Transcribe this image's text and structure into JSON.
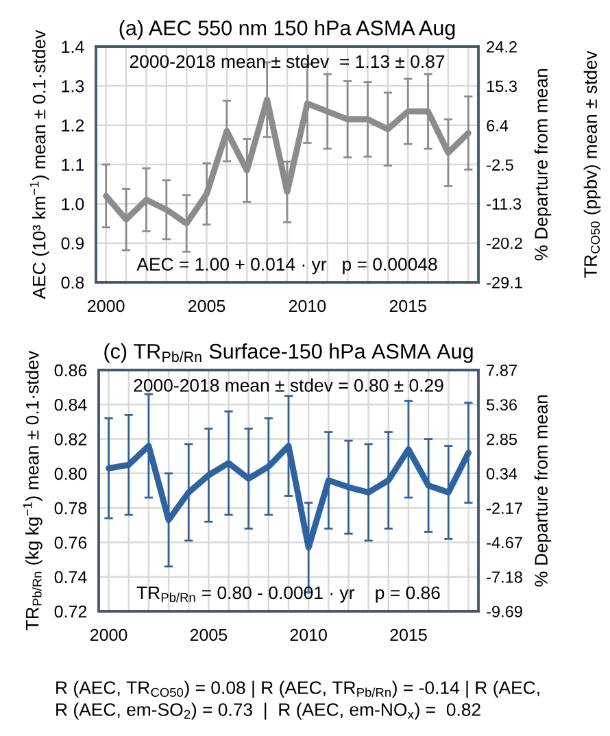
{
  "chart_data": [
    {
      "type": "line",
      "title": "(a) AEC 550 nm 150 hPa ASMA Aug",
      "ylabel": "AEC (10³ km$^{−1}$) mean ± 0.1·stdev",
      "y2label": "% Departure from mean",
      "x": [
        2000,
        2001,
        2002,
        2003,
        2004,
        2005,
        2006,
        2007,
        2008,
        2009,
        2010,
        2011,
        2012,
        2013,
        2014,
        2015,
        2016,
        2017,
        2018
      ],
      "series": [
        {
          "color": "#8c8c8c",
          "values": [
            1.02,
            0.96,
            1.01,
            0.985,
            0.95,
            1.025,
            1.185,
            1.085,
            1.265,
            1.03,
            1.255,
            1.235,
            1.215,
            1.215,
            1.19,
            1.235,
            1.235,
            1.13,
            1.18
          ],
          "errors": [
            0.08,
            0.078,
            0.08,
            0.075,
            0.072,
            0.078,
            0.077,
            0.08,
            0.095,
            0.077,
            0.1,
            0.095,
            0.097,
            0.095,
            0.093,
            0.083,
            0.095,
            0.085,
            0.093
          ]
        }
      ],
      "xlim": [
        1999.5,
        2018.5
      ],
      "xticks": [
        2000,
        {
          "value": 2001,
          "label": null
        },
        {
          "value": 2002,
          "label": null
        },
        {
          "value": 2003,
          "label": null
        },
        {
          "value": 2004,
          "label": null
        },
        2005,
        {
          "value": 2006,
          "label": null
        },
        {
          "value": 2007,
          "label": null
        },
        {
          "value": 2008,
          "label": null
        },
        {
          "value": 2009,
          "label": null
        },
        2010,
        {
          "value": 2011,
          "label": null
        },
        {
          "value": 2012,
          "label": null
        },
        {
          "value": 2013,
          "label": null
        },
        {
          "value": 2014,
          "label": null
        },
        2015,
        {
          "value": 2016,
          "label": null
        },
        {
          "value": 2017,
          "label": null
        },
        {
          "value": 2018,
          "label": null
        }
      ],
      "ylim": [
        0.8,
        1.4
      ],
      "yticks": [
        0.8,
        0.9,
        {
          "value": 1.0,
          "label": "1.0"
        },
        1.1,
        1.2,
        1.3,
        1.4
      ],
      "y2lim": [
        -29.1,
        24.2
      ],
      "y2ticks": [
        -29.1,
        -20.2,
        -11.3,
        -2.5,
        6.4,
        15.3,
        24.2
      ],
      "grid": true,
      "annotations": [
        "2000-2018 mean ± stdev  = 1.13 ± 0.87",
        "AEC = 1.00 + 0.014 · yr   p = 0.00048",
        "TR$_{CO50}$ (ppbv) mean ± stdev"
      ]
    },
    {
      "type": "line",
      "title": "(c) TR$_{Pb/Rn}$ Surface-150 hPa ASMA Aug",
      "ylabel": "TR$_{Pb/Rn}$ (kg kg$^{−1}$) mean ± 0.1·stdev",
      "y2label": "% Departure from mean",
      "x": [
        2000,
        2001,
        2002,
        2003,
        2004,
        2005,
        2006,
        2007,
        2008,
        2009,
        2010,
        2011,
        2012,
        2013,
        2014,
        2015,
        2016,
        2017,
        2018
      ],
      "series": [
        {
          "color": "#2e62a0",
          "values": [
            0.803,
            0.805,
            0.816,
            0.773,
            0.789,
            0.799,
            0.806,
            0.797,
            0.804,
            0.816,
            0.757,
            0.796,
            0.792,
            0.789,
            0.796,
            0.814,
            0.793,
            0.789,
            0.812
          ],
          "errors": [
            0.029,
            0.029,
            0.03,
            0.027,
            0.028,
            0.027,
            0.03,
            0.029,
            0.028,
            0.029,
            0.026,
            0.028,
            0.027,
            0.028,
            0.028,
            0.028,
            0.027,
            0.027,
            0.029
          ]
        }
      ],
      "xlim": [
        1999.5,
        2018.5
      ],
      "xticks": [
        2000,
        {
          "value": 2001,
          "label": null
        },
        {
          "value": 2002,
          "label": null
        },
        {
          "value": 2003,
          "label": null
        },
        {
          "value": 2004,
          "label": null
        },
        2005,
        {
          "value": 2006,
          "label": null
        },
        {
          "value": 2007,
          "label": null
        },
        {
          "value": 2008,
          "label": null
        },
        {
          "value": 2009,
          "label": null
        },
        2010,
        {
          "value": 2011,
          "label": null
        },
        {
          "value": 2012,
          "label": null
        },
        {
          "value": 2013,
          "label": null
        },
        {
          "value": 2014,
          "label": null
        },
        2015,
        {
          "value": 2016,
          "label": null
        },
        {
          "value": 2017,
          "label": null
        },
        {
          "value": 2018,
          "label": null
        }
      ],
      "ylim": [
        0.72,
        0.86
      ],
      "yticks": [
        0.72,
        0.74,
        0.76,
        0.78,
        {
          "value": 0.8,
          "label": "0.80"
        },
        0.82,
        0.84,
        0.86
      ],
      "y2lim": [
        -9.69,
        7.87
      ],
      "y2ticks": [
        -9.69,
        -7.18,
        -4.67,
        -2.17,
        0.34,
        2.85,
        5.36,
        7.87
      ],
      "grid": true,
      "annotations": [
        "2000-2018 mean ± stdev = 0.80 ± 0.29",
        "TR$_{Pb/Rn}$ = 0.80 - 0.0001 · yr    p = 0.86",
        "R (AEC, TR$_{CO50}$) = 0.08 | R (AEC, TR$_{Pb/Rn}$) = -0.14 | R (AEC,",
        "R (AEC, em-SO$_{2}$) = 0.73  |  R (AEC, em-NO$_{x}$) =  0.82"
      ]
    }
  ]
}
